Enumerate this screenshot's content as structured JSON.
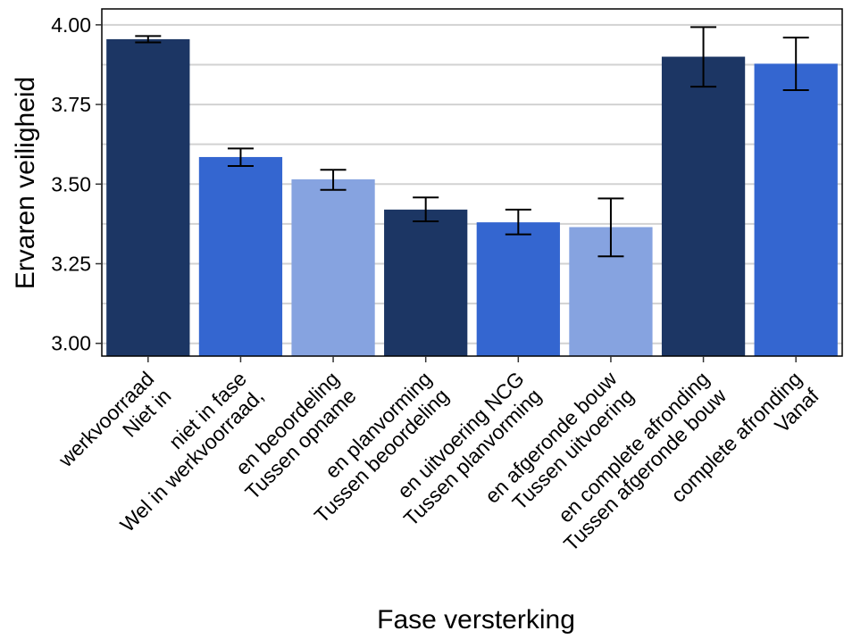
{
  "chart_data": {
    "type": "bar",
    "title": "",
    "xlabel": "Fase versterking",
    "ylabel": "Ervaren veiligheid",
    "ylim": [
      2.96,
      4.05
    ],
    "yticks": [
      "3.00",
      "3.25",
      "3.50",
      "3.75",
      "4.00"
    ],
    "grid": true,
    "categories": [
      [
        "Niet in",
        "werkvoorraad"
      ],
      [
        "Wel in werkvoorraad,",
        "niet in fase"
      ],
      [
        "Tussen opname",
        "en beoordeling"
      ],
      [
        "Tussen beoordeling",
        "en planvorming"
      ],
      [
        "Tussen planvorming",
        "en uitvoering NCG"
      ],
      [
        "Tussen uitvoering",
        "en afgeronde bouw"
      ],
      [
        "Tussen afgeronde bouw",
        "en complete afronding"
      ],
      [
        "Vanaf",
        "complete afronding"
      ]
    ],
    "values": [
      3.955,
      3.585,
      3.515,
      3.42,
      3.38,
      3.365,
      3.9,
      3.878
    ],
    "error_low": [
      3.945,
      3.557,
      3.482,
      3.383,
      3.342,
      3.273,
      3.806,
      3.795
    ],
    "error_high": [
      3.965,
      3.612,
      3.545,
      3.458,
      3.42,
      3.455,
      3.993,
      3.96
    ],
    "colors": [
      "#1c3664",
      "#3466d0",
      "#86a3e0",
      "#1c3664",
      "#3466d0",
      "#86a3e0",
      "#1c3664",
      "#3466d0"
    ]
  }
}
